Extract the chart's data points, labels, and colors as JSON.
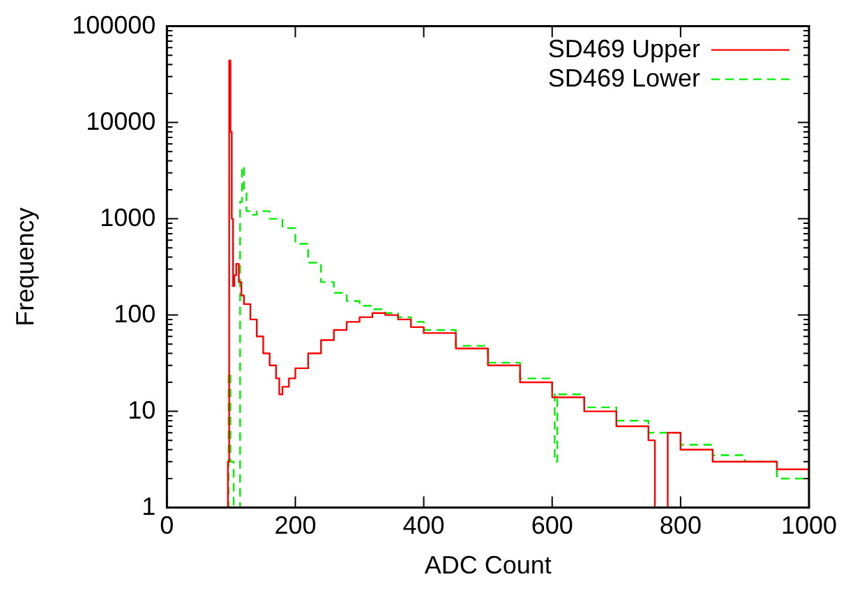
{
  "chart_data": {
    "type": "step",
    "xlabel": "ADC Count",
    "ylabel": "Frequency",
    "xlim": [
      0,
      1000
    ],
    "xticks": [
      0,
      200,
      400,
      600,
      800,
      1000
    ],
    "ylim": [
      1,
      100000
    ],
    "yticks": [
      1,
      10,
      100,
      1000,
      10000,
      100000
    ],
    "log": "y",
    "grid": false,
    "legend": "top right",
    "series": [
      {
        "name": "SD469 Upper",
        "color": "#ff0000",
        "line_style": "solid",
        "x": [
          92,
          95,
          97,
          99,
          101,
          103,
          105,
          108,
          112,
          116,
          120,
          130,
          140,
          150,
          160,
          170,
          175,
          180,
          190,
          200,
          220,
          240,
          260,
          280,
          300,
          320,
          340,
          360,
          380,
          400,
          450,
          500,
          550,
          600,
          650,
          700,
          750,
          760,
          780,
          800,
          850,
          900,
          950,
          1000
        ],
        "values": [
          1,
          3,
          44000,
          8000,
          1000,
          200,
          260,
          340,
          220,
          160,
          130,
          90,
          60,
          40,
          30,
          22,
          15,
          18,
          22,
          28,
          40,
          55,
          70,
          85,
          95,
          105,
          100,
          90,
          75,
          65,
          45,
          30,
          20,
          14,
          10,
          7,
          5,
          1,
          6,
          4,
          3,
          3,
          2.5,
          2.2
        ]
      },
      {
        "name": "SD469 Lower",
        "color": "#00ee00",
        "line_style": "dashed",
        "x": [
          94,
          96,
          99,
          104,
          110,
          114,
          117,
          120,
          124,
          130,
          140,
          160,
          180,
          200,
          220,
          240,
          260,
          280,
          300,
          320,
          340,
          360,
          380,
          400,
          450,
          500,
          550,
          600,
          604,
          608,
          650,
          700,
          750,
          800,
          850,
          900,
          950,
          1000
        ],
        "values": [
          1,
          25,
          3,
          1,
          1,
          1500,
          3500,
          2000,
          1200,
          1100,
          1200,
          1000,
          800,
          550,
          350,
          220,
          170,
          140,
          125,
          115,
          105,
          95,
          85,
          70,
          48,
          32,
          22,
          15,
          3,
          15,
          11,
          8,
          6,
          4.5,
          3.5,
          3,
          2,
          1.8
        ]
      }
    ]
  }
}
